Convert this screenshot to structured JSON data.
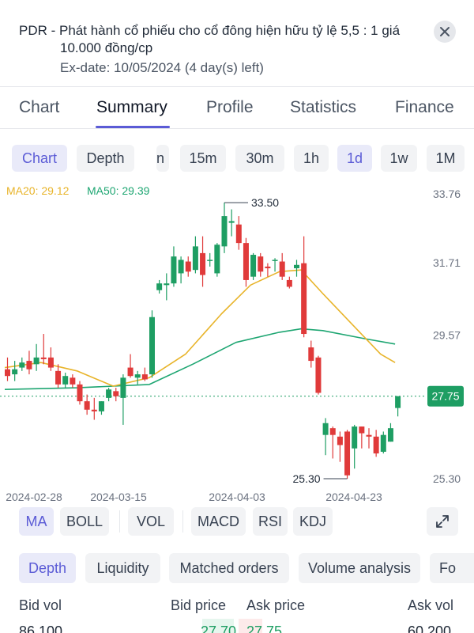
{
  "banner": {
    "line1": "PDR - Phát hành cổ phiếu cho cổ đông hiện hữu tỷ lệ 5,5 : 1 giá",
    "line2": "10.000 đồng/cp",
    "exdate": "Ex-date: 10/05/2024 (4 day(s) left)",
    "close_icon": "close-icon"
  },
  "tabs": [
    "Chart",
    "Summary",
    "Profile",
    "Statistics",
    "Finance"
  ],
  "active_tab": "Summary",
  "chart_toolbar": {
    "modes": [
      "Chart",
      "Depth"
    ],
    "active_mode": "Chart",
    "partial_interval": "n",
    "intervals": [
      "15m",
      "30m",
      "1h",
      "1d",
      "1w",
      "1M"
    ],
    "active_interval": "1d"
  },
  "ma_labels": {
    "ma20": "MA20: 29.12",
    "ma50": "MA50: 29.39",
    "ma20_color": "#e8b42a",
    "ma50_color": "#1ea672"
  },
  "chart_data": {
    "type": "candlestick",
    "y_ticks": [
      "33.76",
      "31.71",
      "29.57",
      "27.75",
      "25.30"
    ],
    "x_ticks": [
      "2024-02-28",
      "2024-03-15",
      "2024-04-03",
      "2024-04-23"
    ],
    "high_label": "33.50",
    "low_label": "25.30",
    "last_price": "27.75",
    "colors": {
      "up": "#1e9e63",
      "down": "#e03a3a",
      "last": "#1e9e63"
    },
    "candles": [
      {
        "o": 28.55,
        "h": 28.9,
        "l": 28.2,
        "c": 28.35
      },
      {
        "o": 28.4,
        "h": 28.8,
        "l": 28.2,
        "c": 28.55
      },
      {
        "o": 28.6,
        "h": 28.9,
        "l": 28.5,
        "c": 28.75
      },
      {
        "o": 28.8,
        "h": 29.1,
        "l": 28.4,
        "c": 28.55
      },
      {
        "o": 28.7,
        "h": 29.3,
        "l": 28.5,
        "c": 28.9
      },
      {
        "o": 28.9,
        "h": 29.6,
        "l": 28.7,
        "c": 28.85
      },
      {
        "o": 28.9,
        "h": 29.2,
        "l": 28.5,
        "c": 28.6
      },
      {
        "o": 28.5,
        "h": 28.7,
        "l": 28.0,
        "c": 28.1
      },
      {
        "o": 28.1,
        "h": 28.45,
        "l": 28.0,
        "c": 28.35
      },
      {
        "o": 28.3,
        "h": 28.4,
        "l": 28.0,
        "c": 28.1
      },
      {
        "o": 28.1,
        "h": 28.2,
        "l": 27.5,
        "c": 27.6
      },
      {
        "o": 27.6,
        "h": 27.8,
        "l": 27.2,
        "c": 27.35
      },
      {
        "o": 27.35,
        "h": 27.7,
        "l": 27.05,
        "c": 27.3
      },
      {
        "o": 27.3,
        "h": 27.6,
        "l": 27.2,
        "c": 27.6
      },
      {
        "o": 27.7,
        "h": 28.0,
        "l": 27.6,
        "c": 27.95
      },
      {
        "o": 27.9,
        "h": 28.0,
        "l": 27.6,
        "c": 27.75
      },
      {
        "o": 27.7,
        "h": 28.4,
        "l": 26.9,
        "c": 28.3
      },
      {
        "o": 28.6,
        "h": 29.0,
        "l": 28.3,
        "c": 28.35
      },
      {
        "o": 28.3,
        "h": 28.5,
        "l": 28.1,
        "c": 28.4
      },
      {
        "o": 28.4,
        "h": 28.6,
        "l": 28.2,
        "c": 28.25
      },
      {
        "o": 28.4,
        "h": 30.3,
        "l": 28.3,
        "c": 30.1
      },
      {
        "o": 30.9,
        "h": 31.2,
        "l": 30.8,
        "c": 31.1
      },
      {
        "o": 31.05,
        "h": 31.4,
        "l": 30.6,
        "c": 31.1
      },
      {
        "o": 31.1,
        "h": 32.2,
        "l": 31.0,
        "c": 31.9
      },
      {
        "o": 31.4,
        "h": 31.9,
        "l": 31.1,
        "c": 31.8
      },
      {
        "o": 31.75,
        "h": 31.9,
        "l": 31.3,
        "c": 31.45
      },
      {
        "o": 31.5,
        "h": 32.5,
        "l": 31.4,
        "c": 32.2
      },
      {
        "o": 32.0,
        "h": 32.5,
        "l": 31.0,
        "c": 31.35
      },
      {
        "o": 31.8,
        "h": 32.0,
        "l": 31.6,
        "c": 31.8
      },
      {
        "o": 31.4,
        "h": 32.3,
        "l": 31.3,
        "c": 32.25
      },
      {
        "o": 32.2,
        "h": 33.5,
        "l": 32.0,
        "c": 33.1
      },
      {
        "o": 32.9,
        "h": 33.3,
        "l": 32.5,
        "c": 32.95
      },
      {
        "o": 32.85,
        "h": 33.1,
        "l": 32.1,
        "c": 32.3
      },
      {
        "o": 32.3,
        "h": 32.45,
        "l": 31.0,
        "c": 31.2
      },
      {
        "o": 31.3,
        "h": 32.0,
        "l": 31.2,
        "c": 31.95
      },
      {
        "o": 31.9,
        "h": 32.0,
        "l": 31.3,
        "c": 31.45
      },
      {
        "o": 31.6,
        "h": 31.7,
        "l": 31.3,
        "c": 31.55
      },
      {
        "o": 31.8,
        "h": 31.85,
        "l": 31.45,
        "c": 31.8
      },
      {
        "o": 31.75,
        "h": 32.0,
        "l": 31.2,
        "c": 31.3
      },
      {
        "o": 31.2,
        "h": 31.3,
        "l": 30.95,
        "c": 31.0
      },
      {
        "o": 31.55,
        "h": 31.8,
        "l": 31.3,
        "c": 31.65
      },
      {
        "o": 31.7,
        "h": 32.5,
        "l": 29.5,
        "c": 29.6
      },
      {
        "o": 29.2,
        "h": 29.4,
        "l": 28.6,
        "c": 28.8
      },
      {
        "o": 28.9,
        "h": 28.95,
        "l": 27.8,
        "c": 27.85
      },
      {
        "o": 26.6,
        "h": 27.1,
        "l": 26.0,
        "c": 26.95
      },
      {
        "o": 26.8,
        "h": 26.85,
        "l": 25.9,
        "c": 26.6
      },
      {
        "o": 26.55,
        "h": 26.7,
        "l": 25.8,
        "c": 26.3
      },
      {
        "o": 26.7,
        "h": 26.75,
        "l": 25.3,
        "c": 25.4
      },
      {
        "o": 26.2,
        "h": 26.9,
        "l": 25.6,
        "c": 26.85
      },
      {
        "o": 26.85,
        "h": 26.85,
        "l": 26.2,
        "c": 26.65
      },
      {
        "o": 26.6,
        "h": 26.8,
        "l": 26.2,
        "c": 26.55
      },
      {
        "o": 26.55,
        "h": 26.75,
        "l": 25.95,
        "c": 26.05
      },
      {
        "o": 26.1,
        "h": 26.7,
        "l": 26.05,
        "c": 26.6
      },
      {
        "o": 26.4,
        "h": 26.95,
        "l": 26.4,
        "c": 26.8
      },
      {
        "o": 27.4,
        "h": 27.75,
        "l": 27.15,
        "c": 27.75
      }
    ],
    "ma20": [
      [
        0,
        28.6
      ],
      [
        5,
        28.75
      ],
      [
        10,
        28.5
      ],
      [
        15,
        28.05
      ],
      [
        20,
        28.3
      ],
      [
        25,
        29.0
      ],
      [
        30,
        30.2
      ],
      [
        34,
        31.05
      ],
      [
        38,
        31.45
      ],
      [
        41,
        31.5
      ],
      [
        44,
        30.8
      ],
      [
        48,
        29.9
      ],
      [
        52,
        29.0
      ],
      [
        54,
        28.75
      ]
    ],
    "ma50": [
      [
        0,
        27.95
      ],
      [
        10,
        28.0
      ],
      [
        20,
        28.1
      ],
      [
        26,
        28.7
      ],
      [
        32,
        29.35
      ],
      [
        38,
        29.65
      ],
      [
        41,
        29.75
      ],
      [
        44,
        29.7
      ],
      [
        50,
        29.45
      ],
      [
        54,
        29.3
      ]
    ]
  },
  "indicators": {
    "items": [
      "MA",
      "BOLL",
      "VOL",
      "MACD",
      "RSI",
      "KDJ"
    ],
    "active": "MA",
    "expand_icon": "expand-icon"
  },
  "depth_tabs": {
    "items": [
      "Depth",
      "Liquidity",
      "Matched orders",
      "Volume analysis",
      "Fo"
    ],
    "active": "Depth"
  },
  "orderbook": {
    "headers": [
      "Bid vol",
      "Bid price",
      "Ask price",
      "Ask vol"
    ],
    "bid_vol": "86,100",
    "bid_price": "27.70",
    "ask_price": "27.75",
    "ask_vol": "60,200"
  }
}
